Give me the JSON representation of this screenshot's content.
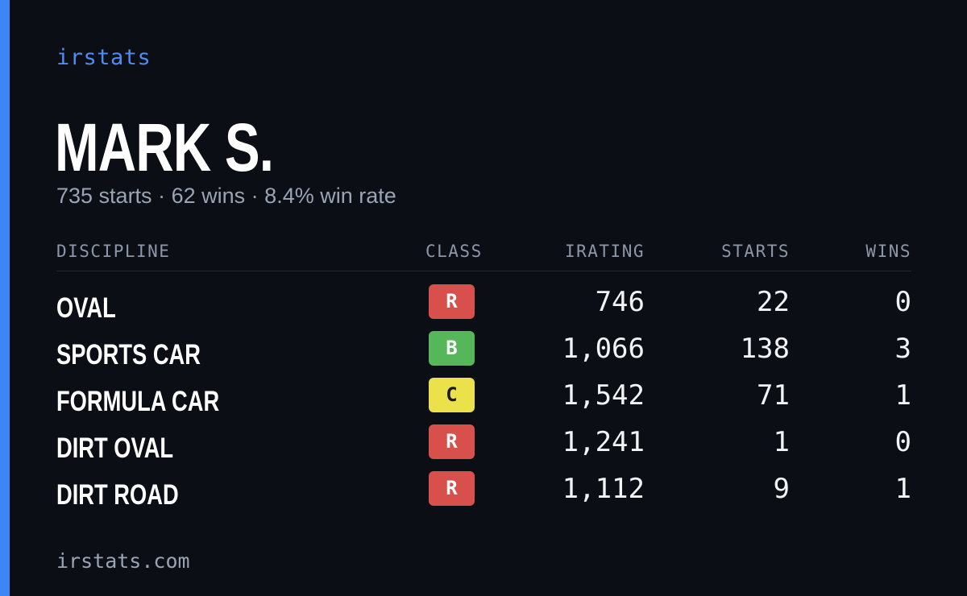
{
  "brand": "irstats",
  "player": {
    "name": "MARK S.",
    "starts_text": "735 starts",
    "wins_text": "62 wins",
    "win_rate_text": "8.4% win rate",
    "separator": "·"
  },
  "table": {
    "headers": {
      "discipline": "DISCIPLINE",
      "class": "CLASS",
      "irating": "IRATING",
      "starts": "STARTS",
      "wins": "WINS"
    },
    "rows": [
      {
        "discipline": "OVAL",
        "class": "R",
        "class_color": "#d8504b",
        "irating": "746",
        "starts": "22",
        "wins": "0"
      },
      {
        "discipline": "SPORTS CAR",
        "class": "B",
        "class_color": "#56b65a",
        "irating": "1,066",
        "starts": "138",
        "wins": "3"
      },
      {
        "discipline": "FORMULA CAR",
        "class": "C",
        "class_color": "#ebe14a",
        "irating": "1,542",
        "starts": "71",
        "wins": "1"
      },
      {
        "discipline": "DIRT OVAL",
        "class": "R",
        "class_color": "#d8504b",
        "irating": "1,241",
        "starts": "1",
        "wins": "0"
      },
      {
        "discipline": "DIRT ROAD",
        "class": "R",
        "class_color": "#d8504b",
        "irating": "1,112",
        "starts": "9",
        "wins": "1"
      }
    ]
  },
  "footer": "irstats.com",
  "colors": {
    "accent": "#3d86f5",
    "background": "#0b0e15",
    "brand_text": "#4b8df7",
    "muted_text": "#9aa4b4"
  }
}
